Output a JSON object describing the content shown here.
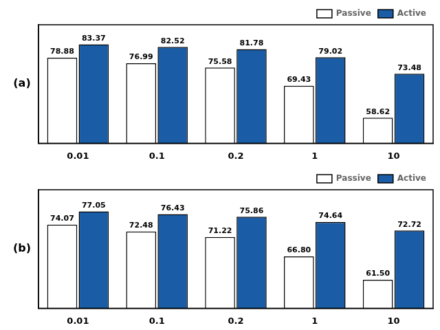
{
  "chart_data": [
    {
      "type": "bar",
      "title": "(a)",
      "categories": [
        "0.01",
        "0.1",
        "0.2",
        "1",
        "10"
      ],
      "series": [
        {
          "name": "Passive",
          "color": "#ffffff",
          "values": [
            78.88,
            76.99,
            75.58,
            69.43,
            58.62
          ],
          "value_labels": [
            "78.88",
            "76.99",
            "75.58",
            "69.43",
            "58.62"
          ]
        },
        {
          "name": "Active",
          "color": "#1a5da6",
          "values": [
            83.37,
            82.52,
            81.78,
            79.02,
            73.48
          ],
          "value_labels": [
            "83.37",
            "82.52",
            "81.78",
            "79.02",
            "73.48"
          ]
        }
      ],
      "ylim": [
        50,
        90
      ],
      "data_labels": true,
      "legend": "upper right",
      "grid": false,
      "tick_labels": "x"
    },
    {
      "type": "bar",
      "title": "(b)",
      "categories": [
        "0.01",
        "0.1",
        "0.2",
        "1",
        "10"
      ],
      "series": [
        {
          "name": "Passive",
          "color": "#ffffff",
          "values": [
            74.07,
            72.48,
            71.22,
            66.8,
            61.5
          ],
          "value_labels": [
            "74.07",
            "72.48",
            "71.22",
            "66.80",
            "61.50"
          ]
        },
        {
          "name": "Active",
          "color": "#1a5da6",
          "values": [
            77.05,
            76.43,
            75.86,
            74.64,
            72.72
          ],
          "value_labels": [
            "77.05",
            "76.43",
            "75.86",
            "74.64",
            "72.72"
          ]
        }
      ],
      "ylim": [
        55,
        82
      ],
      "data_labels": true,
      "legend": "upper right",
      "grid": false,
      "tick_labels": "x"
    }
  ]
}
